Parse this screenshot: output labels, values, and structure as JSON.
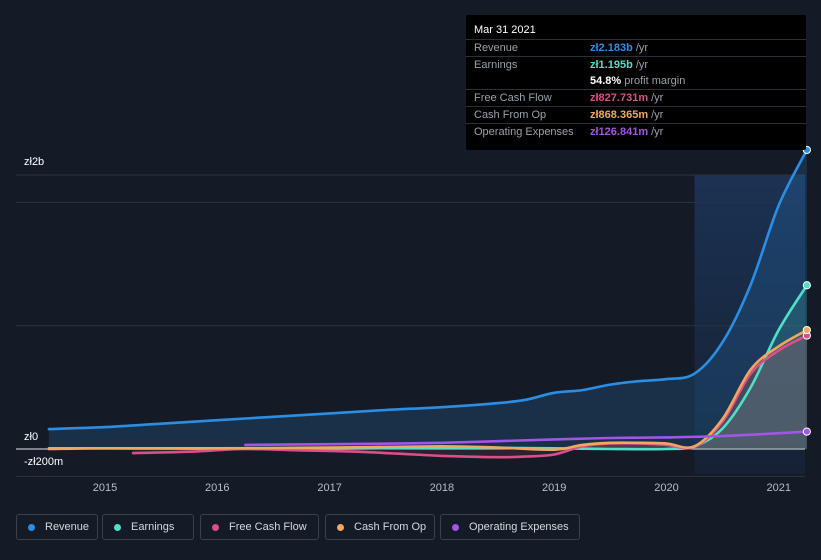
{
  "chart_data": {
    "type": "area",
    "currency": "zł",
    "y_labels": {
      "top": "zł2b",
      "zero": "zł0",
      "bottom": "-zł200m"
    },
    "ylim": [
      -200,
      2000
    ],
    "x_ticks": [
      "2015",
      "2016",
      "2017",
      "2018",
      "2019",
      "2020",
      "2021"
    ],
    "forecast_shade_start": 2020.25,
    "series": [
      {
        "name": "Revenue",
        "color": "#2b8ee5",
        "x": [
          2014.5,
          2015.0,
          2015.5,
          2016.0,
          2016.5,
          2017.0,
          2017.5,
          2018.0,
          2018.5,
          2018.75,
          2019.0,
          2019.25,
          2019.5,
          2019.75,
          2020.0,
          2020.25,
          2020.5,
          2020.75,
          2021.0,
          2021.25
        ],
        "values": [
          145,
          160,
          185,
          210,
          235,
          260,
          285,
          305,
          335,
          360,
          410,
          430,
          470,
          495,
          510,
          550,
          780,
          1200,
          1780,
          2183
        ]
      },
      {
        "name": "Earnings",
        "color": "#4ee0c8",
        "x": [
          2014.5,
          2015.0,
          2016.0,
          2017.0,
          2018.0,
          2019.0,
          2019.5,
          2020.0,
          2020.25,
          2020.5,
          2020.75,
          2021.0,
          2021.25
        ],
        "values": [
          5,
          5,
          2,
          2,
          10,
          5,
          0,
          0,
          20,
          150,
          450,
          870,
          1195
        ]
      },
      {
        "name": "Free Cash Flow",
        "color": "#d94f86",
        "x": [
          2015.25,
          2015.75,
          2016.25,
          2016.75,
          2017.25,
          2017.75,
          2018.0,
          2018.5,
          2018.75,
          2019.0,
          2019.25,
          2019.5,
          2019.75,
          2020.0,
          2020.25,
          2020.5,
          2020.75,
          2021.0,
          2021.25
        ],
        "values": [
          -30,
          -20,
          0,
          -10,
          -20,
          -40,
          -50,
          -60,
          -55,
          -40,
          20,
          40,
          40,
          30,
          15,
          200,
          550,
          720,
          828
        ]
      },
      {
        "name": "Cash From Op",
        "color": "#f0a860",
        "x": [
          2014.5,
          2015.0,
          2016.0,
          2017.0,
          2018.0,
          2018.5,
          2019.0,
          2019.25,
          2019.5,
          2019.75,
          2020.0,
          2020.25,
          2020.5,
          2020.75,
          2021.0,
          2021.25
        ],
        "values": [
          0,
          5,
          5,
          10,
          20,
          10,
          -5,
          30,
          45,
          45,
          40,
          20,
          220,
          580,
          750,
          868
        ]
      },
      {
        "name": "Operating Expenses",
        "color": "#a355e8",
        "x": [
          2016.25,
          2017.0,
          2018.0,
          2019.0,
          2019.5,
          2020.0,
          2020.5,
          2021.0,
          2021.25
        ],
        "values": [
          30,
          35,
          45,
          70,
          80,
          85,
          95,
          115,
          127
        ]
      }
    ]
  },
  "tooltip": {
    "date": "Mar 31 2021",
    "rows": [
      {
        "label": "Revenue",
        "value": "zł2.183b",
        "unit": "/yr",
        "color": "#2b8ee5"
      },
      {
        "label": "Earnings",
        "value": "zł1.195b",
        "unit": "/yr",
        "color": "#4ee0c8"
      },
      {
        "label": "",
        "value": "54.8%",
        "unit": "profit margin",
        "color": "#ffffff"
      },
      {
        "label": "Free Cash Flow",
        "value": "zł827.731m",
        "unit": "/yr",
        "color": "#d94f86"
      },
      {
        "label": "Cash From Op",
        "value": "zł868.365m",
        "unit": "/yr",
        "color": "#f0a860"
      },
      {
        "label": "Operating Expenses",
        "value": "zł126.841m",
        "unit": "/yr",
        "color": "#a355e8"
      }
    ]
  },
  "legend": [
    {
      "label": "Revenue",
      "color": "#2b8ee5"
    },
    {
      "label": "Earnings",
      "color": "#4ee0c8"
    },
    {
      "label": "Free Cash Flow",
      "color": "#d94f86"
    },
    {
      "label": "Cash From Op",
      "color": "#f0a860"
    },
    {
      "label": "Operating Expenses",
      "color": "#a355e8"
    }
  ]
}
